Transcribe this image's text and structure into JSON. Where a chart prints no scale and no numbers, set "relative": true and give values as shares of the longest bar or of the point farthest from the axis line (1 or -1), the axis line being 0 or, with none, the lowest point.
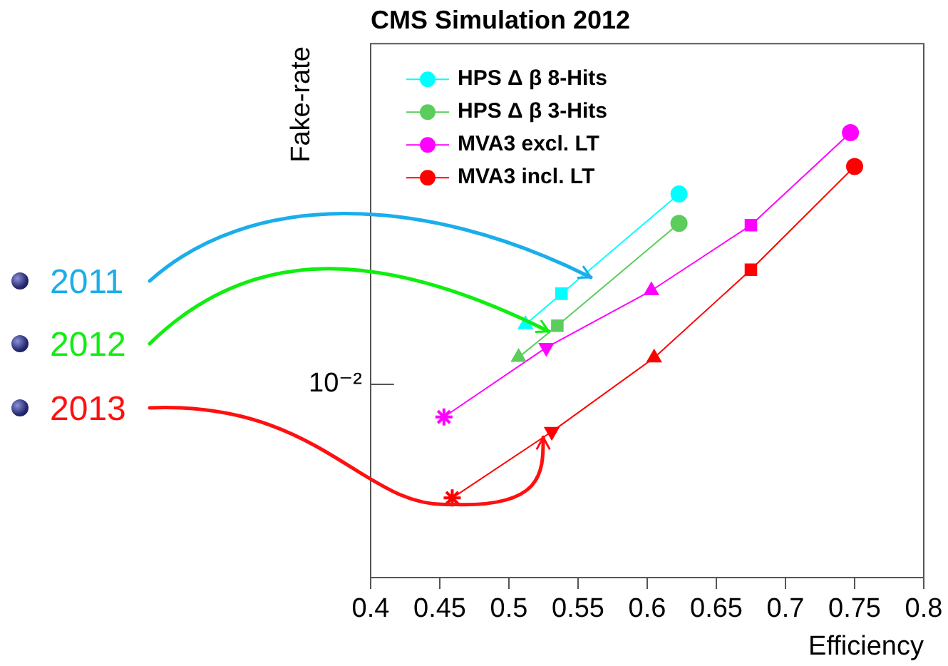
{
  "chart_data": {
    "type": "line",
    "title": "CMS Simulation 2012",
    "xlabel": "Efficiency",
    "ylabel": "Fake-rate",
    "relative": true,
    "grid": false,
    "legend": "top left",
    "line_style": "solid",
    "xlim": [
      0.4,
      0.8
    ],
    "xticks": [
      0.4,
      0.45,
      0.5,
      0.55,
      0.6,
      0.65,
      0.7,
      0.75,
      0.8
    ],
    "series": [
      {
        "name": "HPS Δ β 8-Hits",
        "color": "#00ffff",
        "x": [
          0.512,
          0.538,
          0.623
        ],
        "values": [
          0.569,
          0.638,
          0.862
        ],
        "marker": [
          "triangle",
          "square",
          "circle"
        ]
      },
      {
        "name": "HPS Δ β 3-Hits",
        "color": "#5ccc5c",
        "x": [
          0.507,
          0.535,
          0.623
        ],
        "values": [
          0.495,
          0.566,
          0.796
        ],
        "marker": [
          "triangle",
          "square",
          "circle"
        ]
      },
      {
        "name": "MVA3 excl. LT",
        "color": "#ff00ff",
        "x": [
          0.453,
          0.527,
          0.603,
          0.675,
          0.747
        ],
        "values": [
          0.361,
          0.517,
          0.645,
          0.792,
          1.0
        ],
        "marker": [
          "star",
          "triangle-down",
          "triangle",
          "square",
          "circle"
        ]
      },
      {
        "name": "MVA3 incl. LT",
        "color": "#ff0000",
        "x": [
          0.459,
          0.531,
          0.605,
          0.675,
          0.75
        ],
        "values": [
          0.179,
          0.328,
          0.494,
          0.692,
          0.924
        ],
        "marker": [
          "star",
          "triangle-down",
          "triangle",
          "square",
          "circle"
        ]
      }
    ],
    "annotations": [
      "2011",
      "2012",
      "2013",
      "10⁻²"
    ]
  }
}
